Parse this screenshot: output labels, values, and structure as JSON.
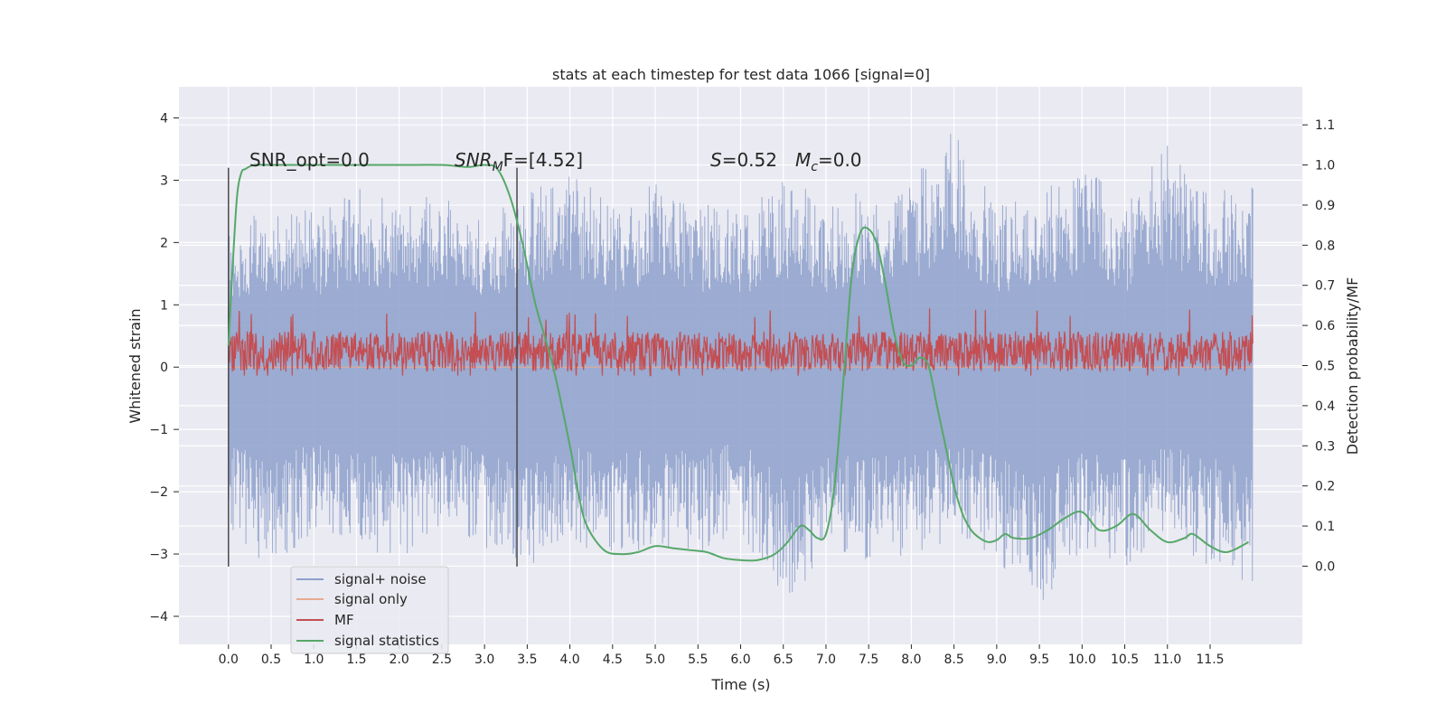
{
  "chart_data": {
    "type": "line",
    "title": "stats at each timestep for test data 1066 [signal=0]",
    "xlabel": "Time (s)",
    "ylabel": "Whitened strain",
    "y2label": "Detection probability/MF",
    "xlim": [
      -0.58,
      12.58
    ],
    "ylim": [
      -4.45,
      4.5
    ],
    "y2lim": [
      -0.195,
      1.195
    ],
    "xticks": [
      "0.0",
      "0.5",
      "1.0",
      "1.5",
      "2.0",
      "2.5",
      "3.0",
      "3.5",
      "4.0",
      "4.5",
      "5.0",
      "5.5",
      "6.0",
      "6.5",
      "7.0",
      "7.5",
      "8.0",
      "8.5",
      "9.0",
      "9.5",
      "10.0",
      "10.5",
      "11.0",
      "11.5"
    ],
    "yticks": [
      "4",
      "3",
      "2",
      "1",
      "0",
      "−1",
      "−2",
      "−3",
      "−4"
    ],
    "y2ticks": [
      "1.1",
      "1.0",
      "0.9",
      "0.8",
      "0.7",
      "0.6",
      "0.5",
      "0.4",
      "0.3",
      "0.2",
      "0.1",
      "0.0"
    ],
    "grid": true,
    "legend_position": "lower-left",
    "vlines": [
      {
        "x": 0.0,
        "ymin": -3.2,
        "ymax": 3.2
      },
      {
        "x": 3.38,
        "ymin": -3.2,
        "ymax": 3.2
      }
    ],
    "annotations": {
      "snr_opt": "SNR_opt=0.0",
      "snr_mf_sym": "SNR",
      "snr_mf_sub": "M",
      "snr_mf_rest": "F=[4.52]",
      "s_sym": "S",
      "s_val": "=0.52",
      "mc_sym": "M",
      "mc_sub": "c",
      "mc_val": "=0.0"
    },
    "series": [
      {
        "name": "signal+ noise",
        "color": "#8da0cb",
        "axis": "left",
        "x_range": [
          0.0,
          12.0
        ],
        "envelope_upper": [
          2.3,
          2.7,
          2.5,
          2.9,
          2.6,
          3.0,
          2.4,
          2.8,
          3.3,
          2.6,
          3.0,
          2.7,
          2.5,
          3.2,
          2.6,
          2.9,
          3.0,
          3.9,
          2.6,
          2.8,
          3.3,
          2.6,
          3.6,
          2.8,
          3.0
        ],
        "envelope_lower": [
          -2.6,
          -3.3,
          -2.7,
          -2.9,
          -3.1,
          -2.6,
          -2.9,
          -3.5,
          -2.8,
          -3.1,
          -2.9,
          -3.0,
          -2.6,
          -4.0,
          -2.9,
          -3.2,
          -3.0,
          -2.8,
          -3.1,
          -4.0,
          -2.9,
          -3.2,
          -2.8,
          -3.2,
          -3.6
        ]
      },
      {
        "name": "signal only",
        "color": "#e8a98f",
        "axis": "left",
        "x": [
          0.0,
          12.0
        ],
        "y": [
          0.0,
          0.0
        ]
      },
      {
        "name": "MF",
        "color": "#c44e52",
        "axis": "right",
        "x_range": [
          0.0,
          12.0
        ],
        "center": 0.535,
        "spread": 0.05,
        "peaks": [
          0.62,
          0.62,
          0.61,
          0.62,
          0.62,
          0.63,
          0.62,
          0.62
        ]
      },
      {
        "name": "signal statistics",
        "color": "#55a868",
        "axis": "right",
        "x": [
          0.0,
          0.05,
          0.1,
          0.15,
          0.2,
          0.3,
          0.5,
          1.0,
          1.5,
          2.0,
          2.5,
          2.8,
          3.0,
          3.15,
          3.3,
          3.45,
          3.6,
          3.8,
          4.0,
          4.1,
          4.2,
          4.4,
          4.6,
          4.8,
          5.0,
          5.2,
          5.4,
          5.6,
          5.8,
          6.0,
          6.2,
          6.4,
          6.55,
          6.7,
          6.8,
          6.9,
          7.0,
          7.1,
          7.2,
          7.3,
          7.4,
          7.5,
          7.6,
          7.7,
          7.8,
          7.9,
          8.0,
          8.1,
          8.2,
          8.3,
          8.4,
          8.5,
          8.6,
          8.7,
          8.8,
          8.9,
          9.0,
          9.1,
          9.2,
          9.4,
          9.6,
          9.8,
          10.0,
          10.2,
          10.4,
          10.6,
          10.8,
          11.0,
          11.2,
          11.3,
          11.5,
          11.7,
          11.95
        ],
        "y": [
          0.55,
          0.75,
          0.92,
          0.98,
          0.99,
          1.0,
          1.0,
          1.0,
          1.0,
          1.0,
          1.0,
          0.995,
          1.0,
          0.99,
          0.92,
          0.8,
          0.65,
          0.5,
          0.3,
          0.18,
          0.1,
          0.04,
          0.03,
          0.035,
          0.05,
          0.045,
          0.04,
          0.035,
          0.02,
          0.015,
          0.015,
          0.03,
          0.06,
          0.1,
          0.09,
          0.07,
          0.08,
          0.2,
          0.45,
          0.72,
          0.83,
          0.84,
          0.8,
          0.7,
          0.58,
          0.51,
          0.5,
          0.52,
          0.5,
          0.4,
          0.3,
          0.2,
          0.13,
          0.09,
          0.07,
          0.06,
          0.065,
          0.08,
          0.07,
          0.07,
          0.09,
          0.12,
          0.135,
          0.09,
          0.1,
          0.13,
          0.09,
          0.06,
          0.07,
          0.08,
          0.05,
          0.035,
          0.06
        ]
      }
    ]
  }
}
